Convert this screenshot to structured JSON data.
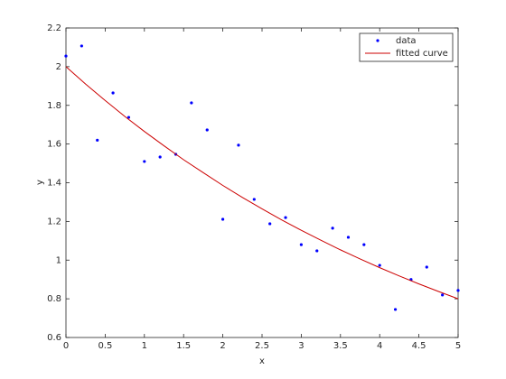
{
  "chart_data": {
    "type": "scatter",
    "xlabel": "x",
    "ylabel": "y",
    "xlim": [
      0,
      5
    ],
    "ylim": [
      0.6,
      2.2
    ],
    "xticks": [
      0,
      0.5,
      1,
      1.5,
      2,
      2.5,
      3,
      3.5,
      4,
      4.5,
      5
    ],
    "yticks": [
      0.6,
      0.8,
      1,
      1.2,
      1.4,
      1.6,
      1.8,
      2,
      2.2
    ],
    "legend": "northeast",
    "series": [
      {
        "name": "data",
        "type": "scatter",
        "color": "#0000ff",
        "x": [
          0,
          0.2,
          0.4,
          0.6,
          0.8,
          1.0,
          1.2,
          1.4,
          1.6,
          1.8,
          2.0,
          2.2,
          2.4,
          2.6,
          2.8,
          3.0,
          3.2,
          3.4,
          3.6,
          3.8,
          4.0,
          4.2,
          4.4,
          4.6,
          4.8,
          5.0
        ],
        "values": [
          2.055,
          2.107,
          1.62,
          1.864,
          1.738,
          1.51,
          1.533,
          1.547,
          1.813,
          1.673,
          1.211,
          1.594,
          1.314,
          1.188,
          1.22,
          1.08,
          1.048,
          1.165,
          1.118,
          1.08,
          0.973,
          0.745,
          0.9,
          0.964,
          0.82,
          0.843
        ]
      },
      {
        "name": "fitted curve",
        "type": "line",
        "color": "#cc0000",
        "x": [
          0,
          0.25,
          0.5,
          0.75,
          1,
          1.25,
          1.5,
          1.75,
          2,
          2.25,
          2.5,
          2.75,
          3,
          3.25,
          3.5,
          3.75,
          4,
          4.25,
          4.5,
          4.75,
          5
        ],
        "values": [
          2.0,
          1.91,
          1.825,
          1.743,
          1.665,
          1.591,
          1.519,
          1.452,
          1.386,
          1.324,
          1.265,
          1.208,
          1.154,
          1.103,
          1.053,
          1.006,
          0.961,
          0.918,
          0.877,
          0.838,
          0.8
        ]
      }
    ]
  }
}
